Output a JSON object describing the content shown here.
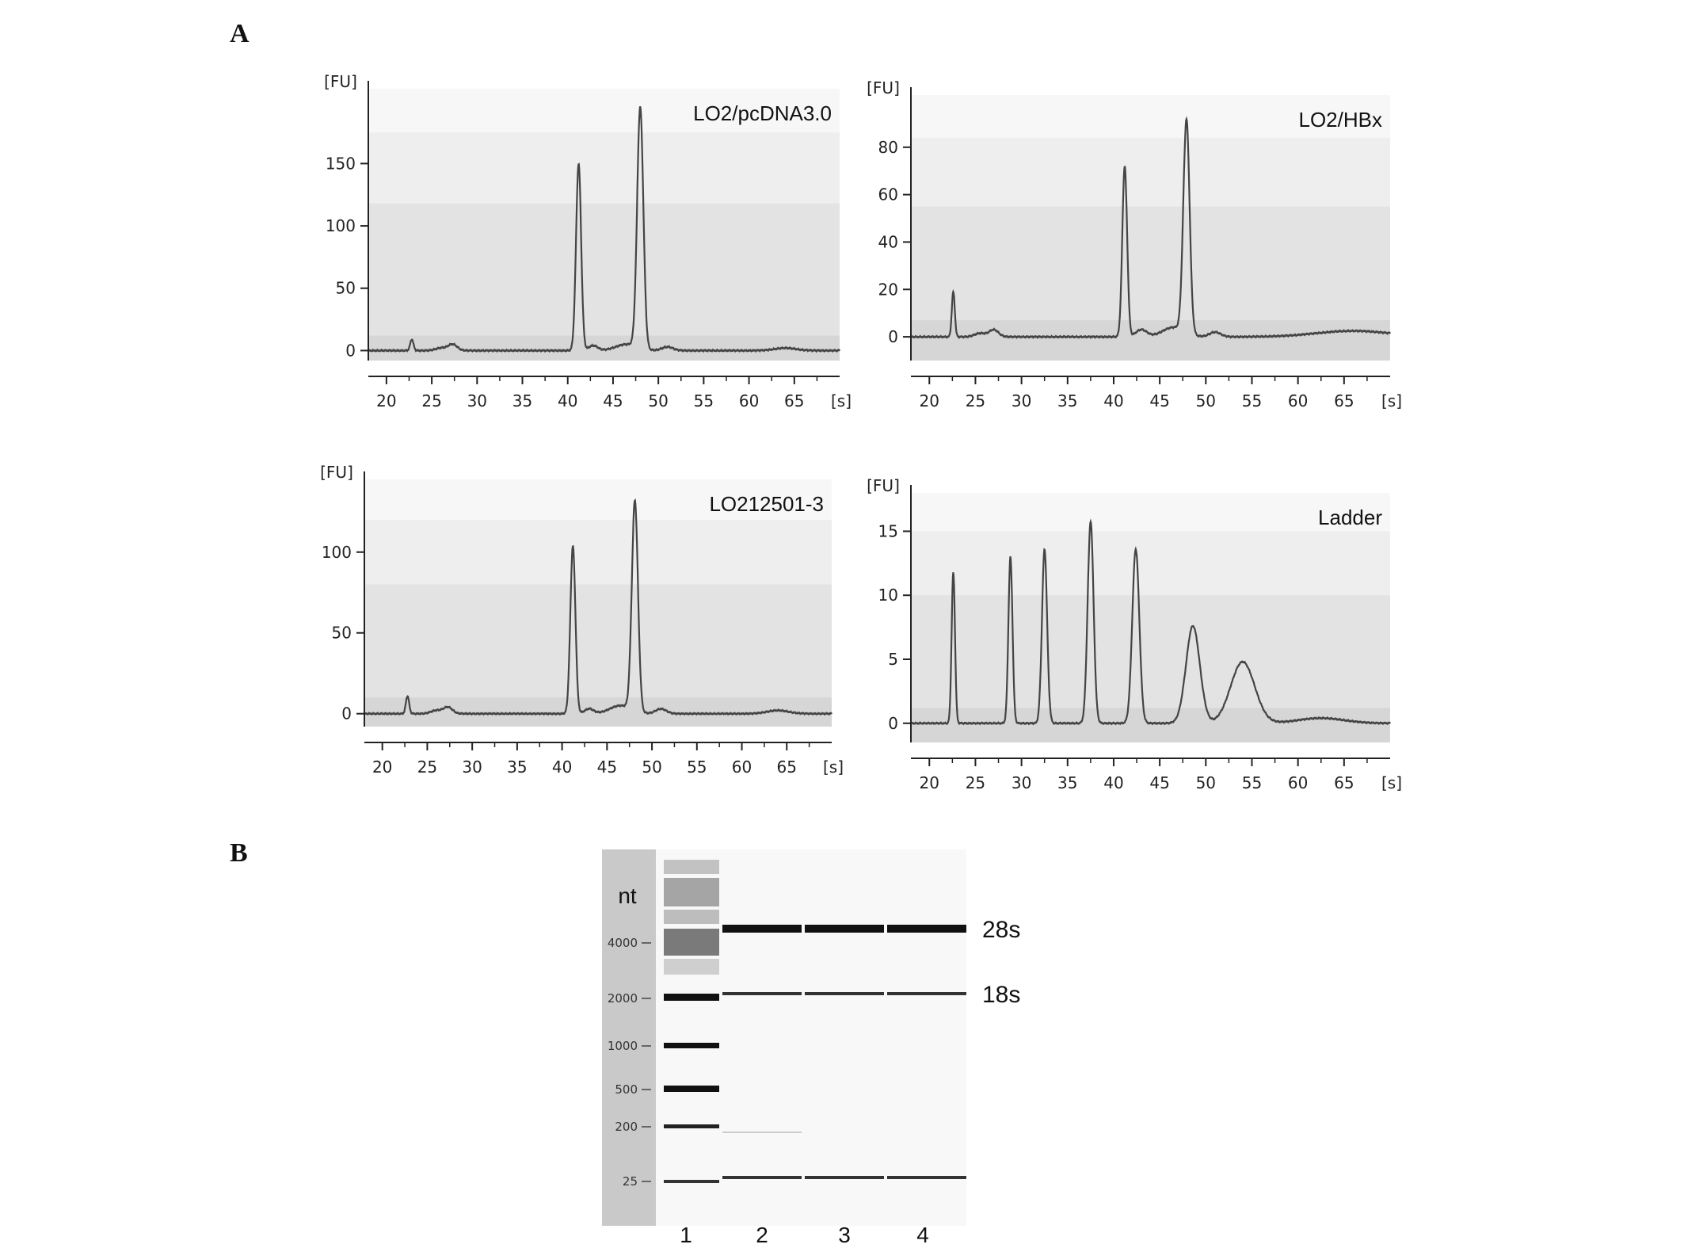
{
  "figure": {
    "panel_a_label": "A",
    "panel_b_label": "B"
  },
  "chart_data": [
    {
      "type": "line",
      "id": "p1",
      "title": "LO2/pcDNA3.0",
      "ylabel": "[FU]",
      "xunit": "[s]",
      "xticks": [
        20,
        25,
        30,
        35,
        40,
        45,
        50,
        55,
        60,
        65
      ],
      "yticks": [
        0,
        50,
        100,
        150
      ],
      "xlim": [
        18,
        70
      ],
      "ylim": [
        -8,
        210
      ],
      "bands": [
        175,
        118,
        12
      ],
      "baseline": 0,
      "peaks": [
        {
          "x": 22.8,
          "y": 9,
          "w": 0.18
        },
        {
          "x": 26.0,
          "y": 2,
          "w": 0.6
        },
        {
          "x": 27.3,
          "y": 5,
          "w": 0.5
        },
        {
          "x": 41.2,
          "y": 150,
          "w": 0.28
        },
        {
          "x": 42.8,
          "y": 4,
          "w": 0.5
        },
        {
          "x": 46.5,
          "y": 5,
          "w": 1.2
        },
        {
          "x": 48.0,
          "y": 193,
          "w": 0.34
        },
        {
          "x": 51.0,
          "y": 3,
          "w": 0.6
        },
        {
          "x": 64.0,
          "y": 2,
          "w": 1.2
        }
      ]
    },
    {
      "type": "line",
      "id": "p2",
      "title": "LO2/HBx",
      "ylabel": "[FU]",
      "xunit": "[s]",
      "xticks": [
        20,
        25,
        30,
        35,
        40,
        45,
        50,
        55,
        60,
        65
      ],
      "yticks": [
        0,
        20,
        40,
        60,
        80
      ],
      "xlim": [
        18,
        70
      ],
      "ylim": [
        -10,
        102
      ],
      "bands": [
        84,
        55,
        7
      ],
      "baseline": 0,
      "peaks": [
        {
          "x": 22.6,
          "y": 19,
          "w": 0.16
        },
        {
          "x": 25.5,
          "y": 1.5,
          "w": 0.6
        },
        {
          "x": 27.0,
          "y": 3,
          "w": 0.5
        },
        {
          "x": 41.2,
          "y": 72,
          "w": 0.26
        },
        {
          "x": 43.0,
          "y": 3,
          "w": 0.6
        },
        {
          "x": 46.5,
          "y": 4,
          "w": 1.2
        },
        {
          "x": 47.9,
          "y": 90,
          "w": 0.34
        },
        {
          "x": 51.0,
          "y": 2,
          "w": 0.6
        },
        {
          "x": 66.0,
          "y": 2.5,
          "w": 4.0
        }
      ]
    },
    {
      "type": "line",
      "id": "p3",
      "title": "LO212501-3",
      "ylabel": "[FU]",
      "xunit": "[s]",
      "xticks": [
        20,
        25,
        30,
        35,
        40,
        45,
        50,
        55,
        60,
        65
      ],
      "yticks": [
        0,
        50,
        100
      ],
      "xlim": [
        18,
        70
      ],
      "ylim": [
        -8,
        145
      ],
      "bands": [
        120,
        80,
        10
      ],
      "baseline": 0,
      "peaks": [
        {
          "x": 22.8,
          "y": 11,
          "w": 0.18
        },
        {
          "x": 26.0,
          "y": 2,
          "w": 0.6
        },
        {
          "x": 27.3,
          "y": 4,
          "w": 0.5
        },
        {
          "x": 41.2,
          "y": 104,
          "w": 0.28
        },
        {
          "x": 43.0,
          "y": 3,
          "w": 0.5
        },
        {
          "x": 46.5,
          "y": 5,
          "w": 1.2
        },
        {
          "x": 48.1,
          "y": 130,
          "w": 0.34
        },
        {
          "x": 51.0,
          "y": 3,
          "w": 0.6
        },
        {
          "x": 64.0,
          "y": 2,
          "w": 1.2
        }
      ]
    },
    {
      "type": "line",
      "id": "p4",
      "title": "Ladder",
      "ylabel": "[FU]",
      "xunit": "[s]",
      "xticks": [
        20,
        25,
        30,
        35,
        40,
        45,
        50,
        55,
        60,
        65
      ],
      "yticks": [
        0,
        5,
        10,
        15
      ],
      "xlim": [
        18,
        70
      ],
      "ylim": [
        -1.5,
        18
      ],
      "bands": [
        15,
        10,
        1.2
      ],
      "baseline": 0,
      "peaks": [
        {
          "x": 22.6,
          "y": 11.8,
          "w": 0.18
        },
        {
          "x": 28.8,
          "y": 13,
          "w": 0.22
        },
        {
          "x": 32.5,
          "y": 13.6,
          "w": 0.28
        },
        {
          "x": 37.5,
          "y": 15.8,
          "w": 0.32
        },
        {
          "x": 42.4,
          "y": 13.6,
          "w": 0.38
        },
        {
          "x": 48.6,
          "y": 7.6,
          "w": 0.75
        },
        {
          "x": 54.0,
          "y": 4.8,
          "w": 1.3
        },
        {
          "x": 62.5,
          "y": 0.4,
          "w": 2.5
        }
      ]
    }
  ],
  "gel": {
    "unit_label": "nt",
    "size_labels": [
      "4000",
      "2000",
      "1000",
      "500",
      "200",
      "25"
    ],
    "lane_labels": [
      "1",
      "2",
      "3",
      "4"
    ],
    "band_labels": [
      "28s",
      "18s"
    ]
  }
}
